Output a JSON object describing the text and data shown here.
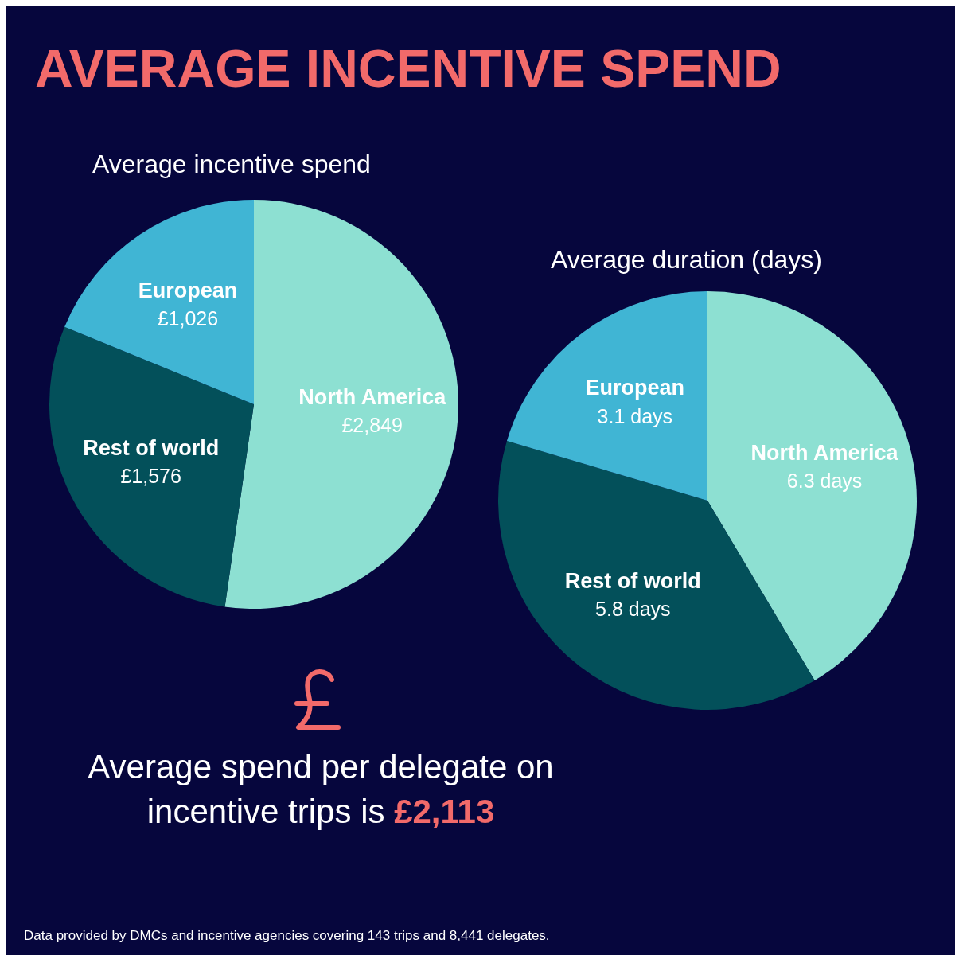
{
  "chart_data": [
    {
      "type": "other",
      "title": "AVERAGE INCENTIVE SPEND",
      "annotations": [
        "Average spend per delegate on incentive trips is £2,113",
        "Data provided by DMCs and incentive agencies covering 143 trips and 8,441 delegates."
      ]
    },
    {
      "type": "pie",
      "title": "Average incentive spend",
      "categories": [
        "North America",
        "Rest of world",
        "European"
      ],
      "values": [
        2849,
        1576,
        1026
      ],
      "value_labels": [
        "£2,849",
        "£1,576",
        "£1,026"
      ],
      "colors": [
        "#8de0d2",
        "#03505a",
        "#40b5d4"
      ],
      "legend": false
    },
    {
      "type": "pie",
      "title": "Average duration (days)",
      "categories": [
        "North America",
        "Rest of world",
        "European"
      ],
      "values": [
        6.3,
        5.8,
        3.1
      ],
      "value_labels": [
        "6.3 days",
        "5.8 days",
        "3.1 days"
      ],
      "colors": [
        "#8de0d2",
        "#03505a",
        "#40b5d4"
      ],
      "legend": false
    }
  ]
}
